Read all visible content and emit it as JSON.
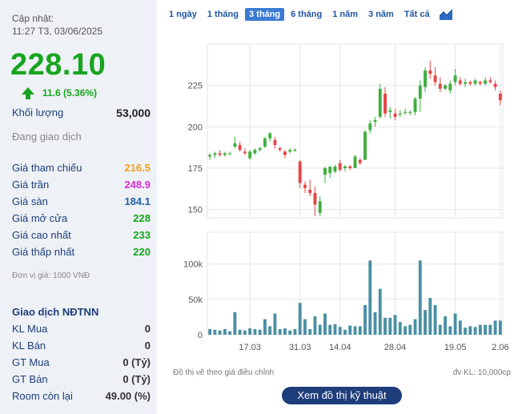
{
  "left": {
    "update_label": "Cập nhật:",
    "update_time": "11:27 T3, 03/06/2025",
    "price": "228.10",
    "change": "11.6 (5.36%)",
    "volume_label": "Khối lượng",
    "volume_value": "53,000",
    "status": "Đang giao dịch",
    "rows": [
      {
        "label": "Giá tham chiếu",
        "value": "216.5"
      },
      {
        "label": "Giá trần",
        "value": "248.9"
      },
      {
        "label": "Giá sàn",
        "value": "184.1"
      },
      {
        "label": "Giá mở cửa",
        "value": "228"
      },
      {
        "label": "Giá cao nhất",
        "value": "233"
      },
      {
        "label": "Giá thấp nhất",
        "value": "220"
      }
    ],
    "unit_note": "Đơn vị giá: 1000 VNĐ",
    "foreign_title": "Giao dịch NĐTNN",
    "foreign_rows": [
      {
        "label": "KL Mua",
        "value": "0"
      },
      {
        "label": "KL Bán",
        "value": "0"
      },
      {
        "label": "GT Mua",
        "value": "0 (Tỷ)"
      },
      {
        "label": "GT Bán",
        "value": "0 (Tỷ)"
      },
      {
        "label": "Room còn lại",
        "value": "49.00 (%)"
      }
    ]
  },
  "tabs": [
    "1 ngày",
    "1 tháng",
    "3 tháng",
    "6 tháng",
    "1 năm",
    "3 năm",
    "Tất cả"
  ],
  "active_tab": "3 tháng",
  "chart_note_left": "Đồ thị vẽ theo giá điều chỉnh",
  "chart_note_right": "đv KL: 10,000cp",
  "button_label": "Xem đồ thị kỹ thuật",
  "chart_data": {
    "type": "candlestick",
    "price_axis": {
      "ticks": [
        150,
        175,
        200,
        225
      ],
      "range": [
        145,
        250
      ]
    },
    "volume_axis": {
      "ticks": [
        {
          "value": 0,
          "label": "0"
        },
        {
          "value": 50000,
          "label": "50k"
        },
        {
          "value": 100000,
          "label": "100k"
        }
      ],
      "range": [
        0,
        145000
      ]
    },
    "x_ticks": [
      {
        "index": 8,
        "label": "17.03"
      },
      {
        "index": 18,
        "label": "31.03"
      },
      {
        "index": 26,
        "label": "14.04"
      },
      {
        "index": 37,
        "label": "28.04"
      },
      {
        "index": 49,
        "label": "19.05"
      },
      {
        "index": 58,
        "label": "2.06"
      }
    ],
    "candles": [
      {
        "o": 182,
        "h": 184,
        "l": 180,
        "c": 183,
        "v": 8000
      },
      {
        "o": 183,
        "h": 185,
        "l": 181,
        "c": 184,
        "v": 7000
      },
      {
        "o": 184,
        "h": 186,
        "l": 182,
        "c": 183,
        "v": 6000
      },
      {
        "o": 183,
        "h": 185,
        "l": 182,
        "c": 184,
        "v": 8000
      },
      {
        "o": 184,
        "h": 185,
        "l": 183,
        "c": 184,
        "v": 5000
      },
      {
        "o": 188,
        "h": 194,
        "l": 187,
        "c": 190,
        "v": 32000
      },
      {
        "o": 189,
        "h": 191,
        "l": 185,
        "c": 186,
        "v": 7000
      },
      {
        "o": 185,
        "h": 187,
        "l": 183,
        "c": 184,
        "v": 6000
      },
      {
        "o": 181,
        "h": 186,
        "l": 180,
        "c": 185,
        "v": 9000
      },
      {
        "o": 184,
        "h": 187,
        "l": 183,
        "c": 186,
        "v": 8000
      },
      {
        "o": 186,
        "h": 188,
        "l": 185,
        "c": 187,
        "v": 7000
      },
      {
        "o": 188,
        "h": 194,
        "l": 187,
        "c": 193,
        "v": 22000
      },
      {
        "o": 193,
        "h": 197,
        "l": 191,
        "c": 196,
        "v": 12000
      },
      {
        "o": 192,
        "h": 194,
        "l": 187,
        "c": 189,
        "v": 30000
      },
      {
        "o": 187,
        "h": 188,
        "l": 185,
        "c": 186,
        "v": 8000
      },
      {
        "o": 185,
        "h": 186,
        "l": 181,
        "c": 183,
        "v": 9000
      },
      {
        "o": 185,
        "h": 187,
        "l": 184,
        "c": 186,
        "v": 6000
      },
      {
        "o": 186,
        "h": 187,
        "l": 185,
        "c": 186,
        "v": 8000
      },
      {
        "o": 179,
        "h": 180,
        "l": 163,
        "c": 166,
        "v": 45000
      },
      {
        "o": 165,
        "h": 167,
        "l": 160,
        "c": 163,
        "v": 22000
      },
      {
        "o": 162,
        "h": 168,
        "l": 158,
        "c": 160,
        "v": 8000
      },
      {
        "o": 160,
        "h": 164,
        "l": 146,
        "c": 153,
        "v": 26000
      },
      {
        "o": 148,
        "h": 158,
        "l": 146,
        "c": 155,
        "v": 14000
      },
      {
        "o": 171,
        "h": 176,
        "l": 166,
        "c": 175,
        "v": 30000
      },
      {
        "o": 172,
        "h": 176,
        "l": 169,
        "c": 176,
        "v": 14000
      },
      {
        "o": 173,
        "h": 177,
        "l": 172,
        "c": 176,
        "v": 15000
      },
      {
        "o": 178,
        "h": 180,
        "l": 173,
        "c": 174,
        "v": 11000
      },
      {
        "o": 175,
        "h": 177,
        "l": 173,
        "c": 176,
        "v": 7000
      },
      {
        "o": 176,
        "h": 177,
        "l": 174,
        "c": 175,
        "v": 13000
      },
      {
        "o": 175,
        "h": 183,
        "l": 175,
        "c": 182,
        "v": 12000
      },
      {
        "o": 180,
        "h": 181,
        "l": 177,
        "c": 178,
        "v": 12000
      },
      {
        "o": 180,
        "h": 198,
        "l": 180,
        "c": 197,
        "v": 42000
      },
      {
        "o": 198,
        "h": 204,
        "l": 196,
        "c": 202,
        "v": 105000
      },
      {
        "o": 203,
        "h": 206,
        "l": 200,
        "c": 204,
        "v": 32000
      },
      {
        "o": 206,
        "h": 226,
        "l": 205,
        "c": 223,
        "v": 65000
      },
      {
        "o": 220,
        "h": 224,
        "l": 206,
        "c": 208,
        "v": 24000
      },
      {
        "o": 209,
        "h": 212,
        "l": 205,
        "c": 210,
        "v": 24000
      },
      {
        "o": 208,
        "h": 211,
        "l": 204,
        "c": 206,
        "v": 28000
      },
      {
        "o": 208,
        "h": 210,
        "l": 206,
        "c": 208,
        "v": 18000
      },
      {
        "o": 209,
        "h": 211,
        "l": 207,
        "c": 209,
        "v": 12000
      },
      {
        "o": 209,
        "h": 210,
        "l": 207,
        "c": 209,
        "v": 14000
      },
      {
        "o": 209,
        "h": 218,
        "l": 207,
        "c": 217,
        "v": 22000
      },
      {
        "o": 217,
        "h": 228,
        "l": 209,
        "c": 225,
        "v": 105000
      },
      {
        "o": 224,
        "h": 236,
        "l": 221,
        "c": 234,
        "v": 35000
      },
      {
        "o": 234,
        "h": 240,
        "l": 229,
        "c": 232,
        "v": 52000
      },
      {
        "o": 231,
        "h": 236,
        "l": 225,
        "c": 227,
        "v": 42000
      },
      {
        "o": 226,
        "h": 230,
        "l": 221,
        "c": 223,
        "v": 14000
      },
      {
        "o": 223,
        "h": 226,
        "l": 222,
        "c": 225,
        "v": 26000
      },
      {
        "o": 222,
        "h": 228,
        "l": 220,
        "c": 226,
        "v": 12000
      },
      {
        "o": 227,
        "h": 235,
        "l": 225,
        "c": 231,
        "v": 30000
      },
      {
        "o": 228,
        "h": 230,
        "l": 225,
        "c": 226,
        "v": 20000
      },
      {
        "o": 226,
        "h": 229,
        "l": 224,
        "c": 227,
        "v": 10000
      },
      {
        "o": 227,
        "h": 228,
        "l": 225,
        "c": 226,
        "v": 12000
      },
      {
        "o": 226,
        "h": 229,
        "l": 225,
        "c": 228,
        "v": 11000
      },
      {
        "o": 227,
        "h": 228,
        "l": 225,
        "c": 226,
        "v": 14000
      },
      {
        "o": 226,
        "h": 230,
        "l": 225,
        "c": 228,
        "v": 14000
      },
      {
        "o": 228,
        "h": 230,
        "l": 226,
        "c": 227,
        "v": 14000
      },
      {
        "o": 226,
        "h": 228,
        "l": 222,
        "c": 224,
        "v": 20000
      },
      {
        "o": 220,
        "h": 222,
        "l": 213,
        "c": 216,
        "v": 20000
      }
    ],
    "colors": {
      "up": "#3fae3f",
      "down": "#e74545",
      "volume": "#4a90a4",
      "grid": "#e4e6ea",
      "axis_text": "#555555"
    }
  }
}
